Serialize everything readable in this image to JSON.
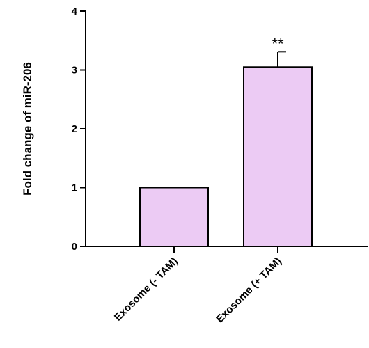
{
  "chart_data": {
    "type": "bar",
    "title": "",
    "xlabel": "",
    "ylabel": "Fold change of miR-206",
    "ylim": [
      0,
      4
    ],
    "yticks": [
      "0",
      "1",
      "2",
      "3",
      "4"
    ],
    "categories": [
      "Exosome (- TAM)",
      "Exosome (+ TAM)"
    ],
    "values": [
      1.0,
      3.05
    ],
    "errors": [
      0,
      0.26
    ],
    "annotations": [
      "",
      "**"
    ],
    "bar_color": "#eccbf4",
    "edge_color": "#000000",
    "grid": false,
    "legend": "none"
  }
}
